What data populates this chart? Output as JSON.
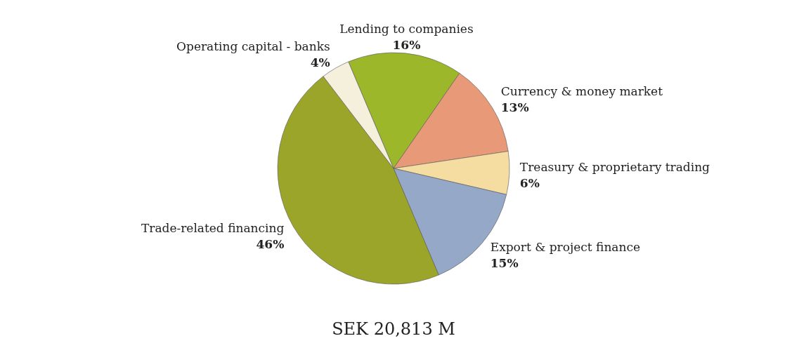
{
  "chart_data": {
    "type": "pie",
    "categories": [
      "Lending to companies",
      "Currency & money market",
      "Treasury & proprietary trading",
      "Export & project finance",
      "Trade-related financing",
      "Operating capital - banks"
    ],
    "values": [
      16,
      13,
      6,
      15,
      46,
      4
    ],
    "colors": [
      "#9cb82a",
      "#e89a78",
      "#f5dca0",
      "#95a8c8",
      "#9aa52a",
      "#f5f0dc"
    ],
    "value_labels": [
      "16%",
      "13%",
      "6%",
      "15%",
      "46%",
      "4%"
    ],
    "legend": false,
    "annotations": [
      "SEK 20,813 M"
    ]
  }
}
